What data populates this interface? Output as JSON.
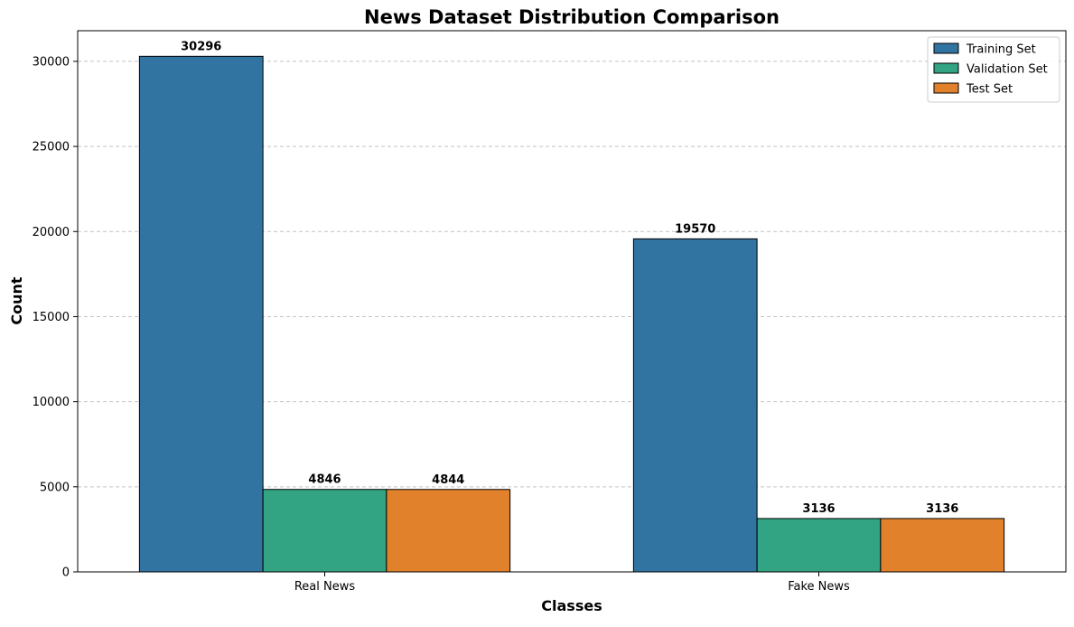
{
  "chart_data": {
    "type": "bar",
    "title": "News Dataset Distribution Comparison",
    "xlabel": "Classes",
    "ylabel": "Count",
    "categories": [
      "Real News",
      "Fake News"
    ],
    "series": [
      {
        "name": "Training Set",
        "values": [
          30296,
          19570
        ],
        "color": "#3274a1"
      },
      {
        "name": "Validation Set",
        "values": [
          4846,
          3136
        ],
        "color": "#32a383"
      },
      {
        "name": "Test Set",
        "values": [
          4844,
          3136
        ],
        "color": "#e1812c"
      }
    ],
    "ylim": [
      0,
      31800
    ],
    "yticks": [
      0,
      5000,
      10000,
      15000,
      20000,
      25000,
      30000
    ],
    "grid": "y-dashed",
    "legend_position": "top-right",
    "show_data_labels": true
  }
}
